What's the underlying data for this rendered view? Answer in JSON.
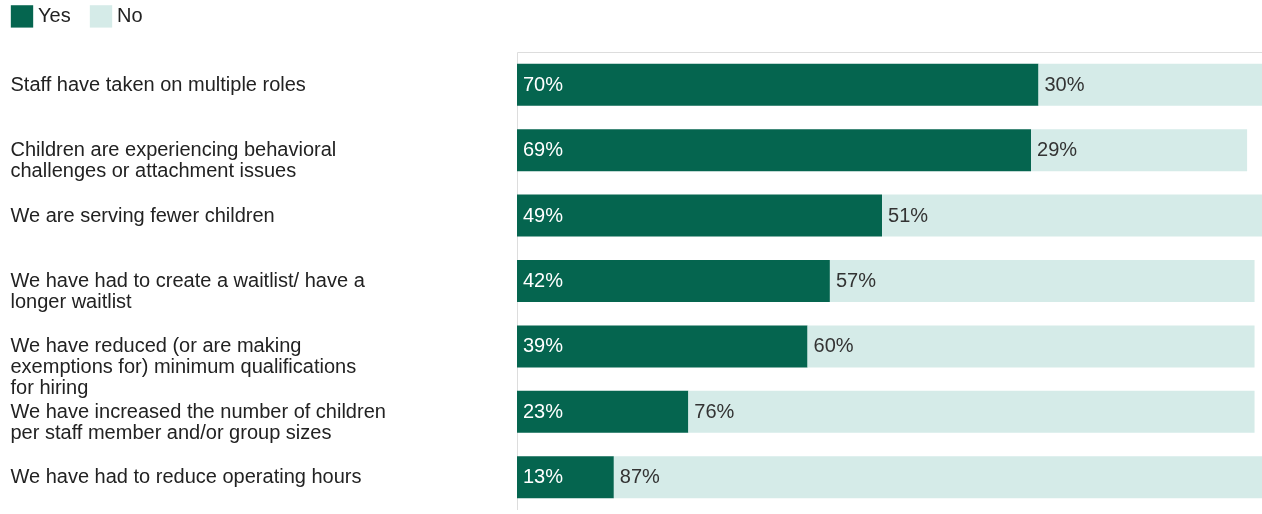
{
  "chart_data": {
    "type": "bar",
    "orientation": "horizontal",
    "stacked": true,
    "legend": "top left",
    "categories": [
      "Staff have taken on multiple roles",
      "Children are experiencing behavioral challenges or attachment issues",
      "We are serving fewer children",
      "We have had to create a waitlist/ have a longer waitlist",
      "We have reduced (or are making exemptions for) minimum qualifications for hiring",
      "We have increased the number of children per staff member and/or group sizes",
      "We have had to reduce operating hours"
    ],
    "series": [
      {
        "name": "Yes",
        "color": "#05654f",
        "values": [
          70,
          69,
          49,
          42,
          39,
          23,
          13
        ],
        "value_labels": [
          "70%",
          "69%",
          "49%",
          "42%",
          "39%",
          "23%",
          "13%"
        ]
      },
      {
        "name": "No",
        "color": "#d5ebe8",
        "values": [
          30,
          29,
          51,
          57,
          60,
          76,
          87
        ],
        "value_labels": [
          "30%",
          "29%",
          "51%",
          "57%",
          "60%",
          "76%",
          "87%"
        ]
      }
    ]
  }
}
